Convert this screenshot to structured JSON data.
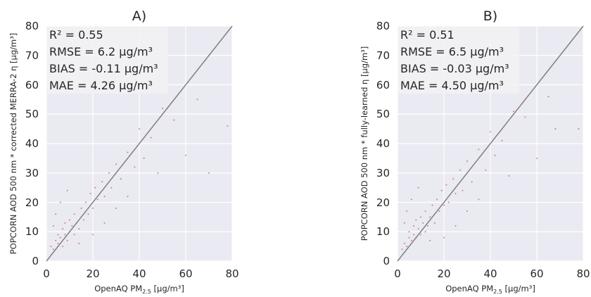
{
  "chart_data": [
    {
      "type": "scatter",
      "title": "A)",
      "xlabel": "OpenAQ PM",
      "xlabel_sub": "2.5",
      "xlabel_unit": " [μg/m³]",
      "ylabel": "POPCORN AOD 500 nm * corrected MERRA-2 η [μg/m³]",
      "xlim": [
        0,
        80
      ],
      "ylim": [
        0,
        80
      ],
      "xticks": [
        "0",
        "20",
        "40",
        "60",
        "80"
      ],
      "yticks": [
        "0",
        "10",
        "20",
        "30",
        "40",
        "50",
        "60",
        "70",
        "80"
      ],
      "grid": true,
      "reference_line": "1:1",
      "stats": [
        "R² = 0.55",
        "RMSE = 6.2 μg/m³",
        "BIAS = -0.11 μg/m³",
        "MAE = 4.26 μg/m³"
      ],
      "point_color": "#d9565e",
      "points": [
        [
          2,
          5
        ],
        [
          3,
          4
        ],
        [
          4,
          7
        ],
        [
          5,
          6
        ],
        [
          5,
          9
        ],
        [
          6,
          8
        ],
        [
          7,
          5
        ],
        [
          7,
          11
        ],
        [
          8,
          9
        ],
        [
          8,
          13
        ],
        [
          9,
          7
        ],
        [
          10,
          10
        ],
        [
          10,
          14
        ],
        [
          11,
          12
        ],
        [
          12,
          9
        ],
        [
          12,
          16
        ],
        [
          13,
          13
        ],
        [
          14,
          11
        ],
        [
          15,
          18
        ],
        [
          16,
          14
        ],
        [
          17,
          20
        ],
        [
          18,
          16
        ],
        [
          19,
          23
        ],
        [
          20,
          18
        ],
        [
          21,
          25
        ],
        [
          22,
          21
        ],
        [
          24,
          27
        ],
        [
          25,
          22
        ],
        [
          27,
          30
        ],
        [
          28,
          25
        ],
        [
          30,
          33
        ],
        [
          32,
          28
        ],
        [
          35,
          37
        ],
        [
          38,
          32
        ],
        [
          40,
          45
        ],
        [
          42,
          35
        ],
        [
          45,
          42
        ],
        [
          48,
          30
        ],
        [
          50,
          52
        ],
        [
          55,
          48
        ],
        [
          60,
          36
        ],
        [
          65,
          55
        ],
        [
          70,
          30
        ],
        [
          78,
          46
        ],
        [
          4,
          16
        ],
        [
          6,
          20
        ],
        [
          3,
          12
        ],
        [
          9,
          24
        ],
        [
          14,
          6
        ],
        [
          20,
          9
        ],
        [
          25,
          13
        ],
        [
          30,
          18
        ],
        [
          35,
          22
        ]
      ]
    },
    {
      "type": "scatter",
      "title": "B)",
      "xlabel": "OpenAQ PM",
      "xlabel_sub": "2.5",
      "xlabel_unit": " [μg/m³]",
      "ylabel": "POPCORN AOD 500 nm * fully-learned η [μg/m³]",
      "xlim": [
        0,
        80
      ],
      "ylim": [
        0,
        80
      ],
      "xticks": [
        "0",
        "20",
        "40",
        "60",
        "80"
      ],
      "yticks": [
        "0",
        "10",
        "20",
        "30",
        "40",
        "50",
        "60",
        "70",
        "80"
      ],
      "grid": true,
      "reference_line": "1:1",
      "stats": [
        "R² = 0.51",
        "RMSE = 6.5 μg/m³",
        "BIAS = -0.03 μg/m³",
        "MAE = 4.50 μg/m³"
      ],
      "point_color": "#d9565e",
      "points": [
        [
          2,
          4
        ],
        [
          3,
          6
        ],
        [
          4,
          5
        ],
        [
          5,
          8
        ],
        [
          5,
          10
        ],
        [
          6,
          7
        ],
        [
          7,
          9
        ],
        [
          7,
          12
        ],
        [
          8,
          8
        ],
        [
          8,
          14
        ],
        [
          9,
          11
        ],
        [
          10,
          9
        ],
        [
          10,
          15
        ],
        [
          11,
          13
        ],
        [
          12,
          10
        ],
        [
          12,
          17
        ],
        [
          13,
          12
        ],
        [
          14,
          15
        ],
        [
          15,
          19
        ],
        [
          16,
          13
        ],
        [
          17,
          21
        ],
        [
          18,
          17
        ],
        [
          19,
          24
        ],
        [
          20,
          19
        ],
        [
          21,
          26
        ],
        [
          22,
          20
        ],
        [
          24,
          28
        ],
        [
          25,
          23
        ],
        [
          27,
          31
        ],
        [
          28,
          24
        ],
        [
          30,
          34
        ],
        [
          32,
          27
        ],
        [
          35,
          38
        ],
        [
          38,
          31
        ],
        [
          40,
          44
        ],
        [
          42,
          36
        ],
        [
          45,
          41
        ],
        [
          48,
          29
        ],
        [
          50,
          51
        ],
        [
          55,
          49
        ],
        [
          60,
          35
        ],
        [
          65,
          56
        ],
        [
          68,
          45
        ],
        [
          78,
          45
        ],
        [
          4,
          17
        ],
        [
          6,
          21
        ],
        [
          3,
          13
        ],
        [
          9,
          25
        ],
        [
          14,
          7
        ],
        [
          20,
          8
        ],
        [
          25,
          12
        ],
        [
          30,
          17
        ],
        [
          35,
          21
        ]
      ]
    }
  ]
}
